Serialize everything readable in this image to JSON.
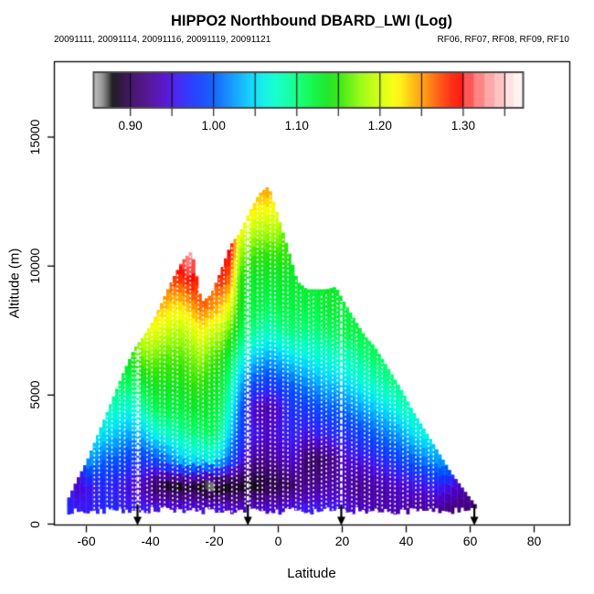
{
  "header": {
    "title": "HIPPO2 Northbound DBARD_LWI (Log)",
    "subtitle_left": "20091111, 20091114, 20091116, 20091119, 20091121",
    "subtitle_right": "RF06, RF07, RF08, RF09, RF10"
  },
  "chart_data": {
    "type": "heatmap",
    "title": "HIPPO2 Northbound DBARD_LWI (Log)",
    "xlabel": "Latitude",
    "ylabel": "Altitude (m)",
    "xlim": [
      -70,
      91
    ],
    "ylim": [
      0,
      17900
    ],
    "x_ticks": [
      -60,
      -40,
      -20,
      0,
      20,
      40,
      60,
      80
    ],
    "x_tick_labels": [
      "-60",
      "-40",
      "-20",
      "0",
      "20",
      "40",
      "60",
      "80"
    ],
    "y_ticks": [
      0,
      5000,
      10000,
      15000
    ],
    "y_tick_labels": [
      "0",
      "5000",
      "10000",
      "15000"
    ],
    "grid_lines": false,
    "colorbar": {
      "range": [
        0.857,
        1.371
      ],
      "minor_ticks": [
        0.9,
        0.95,
        1.0,
        1.05,
        1.1,
        1.15,
        1.2,
        1.25,
        1.3,
        1.35
      ],
      "labeled_ticks": [
        0.9,
        1.0,
        1.1,
        1.2,
        1.3
      ],
      "tick_labels": [
        "0.90",
        "1.00",
        "1.10",
        "1.20",
        "1.30"
      ],
      "divider_values": [
        0.9,
        0.95,
        1.0,
        1.05,
        1.1,
        1.15,
        1.2,
        1.25,
        1.3,
        1.35
      ],
      "palette": [
        [
          0.857,
          "#b4b4b4"
        ],
        [
          0.866,
          "#8c8c8c"
        ],
        [
          0.872,
          "#555555"
        ],
        [
          0.878,
          "#0a0a0a"
        ],
        [
          0.888,
          "#1e0030"
        ],
        [
          0.9,
          "#32005a"
        ],
        [
          0.92,
          "#46008c"
        ],
        [
          0.94,
          "#4a00c8"
        ],
        [
          0.955,
          "#3c14f0"
        ],
        [
          0.97,
          "#1e28ff"
        ],
        [
          0.985,
          "#0a3cff"
        ],
        [
          1.0,
          "#0055ff"
        ],
        [
          1.015,
          "#0080ff"
        ],
        [
          1.03,
          "#00a8ff"
        ],
        [
          1.045,
          "#00d2ff"
        ],
        [
          1.06,
          "#00f0e6"
        ],
        [
          1.075,
          "#00ffc8"
        ],
        [
          1.09,
          "#00ffa0"
        ],
        [
          1.105,
          "#00ff64"
        ],
        [
          1.12,
          "#00f53c"
        ],
        [
          1.135,
          "#0ae61e"
        ],
        [
          1.15,
          "#28e600"
        ],
        [
          1.165,
          "#64f000"
        ],
        [
          1.175,
          "#8cfa00"
        ],
        [
          1.195,
          "#c8ff00"
        ],
        [
          1.215,
          "#f5ff00"
        ],
        [
          1.225,
          "#ffee00"
        ],
        [
          1.24,
          "#ffb400"
        ],
        [
          1.255,
          "#ff8c00"
        ],
        [
          1.27,
          "#ff5000"
        ],
        [
          1.285,
          "#ff1e00"
        ],
        [
          1.3,
          "#ff0000"
        ],
        [
          1.3,
          "#ff4646"
        ],
        [
          1.3125,
          "#ff4646"
        ],
        [
          1.3125,
          "#ff7878"
        ],
        [
          1.325,
          "#ff7878"
        ],
        [
          1.325,
          "#ff9d9d"
        ],
        [
          1.3375,
          "#ff9d9d"
        ],
        [
          1.3375,
          "#ffbdbd"
        ],
        [
          1.35,
          "#ffbdbd"
        ],
        [
          1.35,
          "#ffe0e0"
        ],
        [
          1.3605,
          "#ffe0e0"
        ],
        [
          1.3605,
          "#fff2f2"
        ],
        [
          1.371,
          "#fff2f2"
        ]
      ]
    },
    "arrows_lat": [
      -44,
      -9.5,
      19.7,
      61.3
    ],
    "flight_tracks_lat": [
      -57.5,
      -56,
      -53.5,
      -52,
      -49.5,
      -48,
      -45.5,
      -44.6,
      -43.2,
      -41,
      -39.5,
      -37,
      -35.5,
      -33,
      -31.5,
      -29,
      -27.5,
      -25,
      -23.5,
      -21.5,
      -20,
      -18.5,
      -17,
      -14.5,
      -13,
      -10.4,
      -8.8,
      -6.5,
      -5,
      -2.5,
      -1,
      1.5,
      3,
      5.5,
      7,
      9.5,
      11,
      13.5,
      15,
      17,
      18.5,
      21,
      23,
      24.5,
      27,
      28.5,
      31,
      32.5,
      35,
      36.5,
      39,
      40.5,
      43,
      44.5,
      47,
      48.5
    ],
    "heavy_tracks_lat": [
      -43.9,
      -9.5,
      19.7
    ],
    "grid": {
      "lats": [
        -66,
        -63,
        -60,
        -57,
        -54,
        -51,
        -48,
        -45,
        -42,
        -39,
        -36,
        -33,
        -30,
        -27,
        -24,
        -21,
        -18,
        -15,
        -12,
        -9,
        -6,
        -3,
        0,
        3,
        6,
        9,
        12,
        15,
        18,
        21,
        24,
        27,
        30,
        33,
        36,
        39,
        42,
        45,
        48,
        51,
        54,
        57,
        60,
        62
      ],
      "top_alt": [
        900,
        1700,
        2400,
        3300,
        4200,
        5100,
        6000,
        6800,
        7300,
        7900,
        8700,
        9500,
        10200,
        10600,
        8600,
        8900,
        9800,
        10800,
        11300,
        12100,
        12800,
        13100,
        11900,
        10700,
        9400,
        9100,
        9100,
        9100,
        9200,
        8500,
        7900,
        7300,
        6900,
        6300,
        5700,
        5100,
        4400,
        3800,
        3200,
        2600,
        2000,
        1500,
        1000,
        700
      ],
      "alts": [
        500,
        1500,
        2500,
        3500,
        4500,
        5500,
        6500,
        7500,
        8500,
        9500,
        10500,
        11500,
        12500,
        13500
      ],
      "values": [
        [
          0.97
        ],
        [
          0.96,
          0.94
        ],
        [
          0.96,
          0.95,
          1.03
        ],
        [
          0.96,
          0.96,
          1.02,
          1.06
        ],
        [
          0.97,
          0.97,
          1.0,
          1.05,
          1.08
        ],
        [
          0.97,
          0.96,
          1.0,
          1.04,
          1.08,
          1.11
        ],
        [
          0.96,
          0.95,
          0.99,
          1.03,
          1.07,
          1.11,
          1.14
        ],
        [
          0.96,
          0.94,
          0.98,
          1.03,
          1.07,
          1.11,
          1.15,
          1.19
        ],
        [
          0.96,
          0.93,
          0.98,
          1.04,
          1.09,
          1.13,
          1.17,
          1.21
        ],
        [
          0.96,
          0.9,
          0.99,
          1.06,
          1.11,
          1.14,
          1.17,
          1.21,
          1.25
        ],
        [
          0.96,
          0.89,
          1.0,
          1.07,
          1.12,
          1.14,
          1.16,
          1.2,
          1.24,
          1.28
        ],
        [
          0.96,
          0.88,
          1.02,
          1.08,
          1.12,
          1.14,
          1.16,
          1.19,
          1.23,
          1.28,
          1.31
        ],
        [
          0.96,
          0.88,
          1.04,
          1.09,
          1.12,
          1.14,
          1.16,
          1.19,
          1.23,
          1.28,
          1.32
        ],
        [
          0.96,
          0.89,
          1.05,
          1.1,
          1.13,
          1.15,
          1.17,
          1.2,
          1.25,
          1.3,
          1.33
        ],
        [
          0.96,
          0.87,
          1.05,
          1.1,
          1.13,
          1.15,
          1.18,
          1.22,
          1.27
        ],
        [
          0.96,
          0.865,
          1.06,
          1.11,
          1.13,
          1.14,
          1.16,
          1.2,
          1.26
        ],
        [
          0.96,
          0.87,
          1.04,
          1.09,
          1.11,
          1.13,
          1.15,
          1.19,
          1.24,
          1.29
        ],
        [
          0.95,
          0.875,
          1.0,
          1.04,
          1.07,
          1.09,
          1.12,
          1.16,
          1.21,
          1.26,
          1.3
        ],
        [
          0.95,
          0.88,
          0.96,
          0.99,
          1.01,
          1.04,
          1.08,
          1.12,
          1.14,
          1.15,
          1.18,
          1.22
        ],
        [
          0.95,
          0.88,
          0.93,
          0.96,
          0.95,
          1.0,
          1.05,
          1.1,
          1.12,
          1.13,
          1.16,
          1.2,
          1.24
        ],
        [
          0.95,
          0.88,
          0.92,
          0.95,
          0.93,
          0.99,
          1.04,
          1.09,
          1.12,
          1.13,
          1.15,
          1.19,
          1.23,
          1.26
        ],
        [
          0.95,
          0.89,
          0.92,
          0.94,
          0.93,
          0.98,
          1.03,
          1.08,
          1.11,
          1.13,
          1.15,
          1.19,
          1.23,
          1.27
        ],
        [
          0.95,
          0.89,
          0.93,
          0.95,
          0.94,
          0.99,
          1.04,
          1.09,
          1.12,
          1.13,
          1.15,
          1.19,
          1.22
        ],
        [
          0.96,
          0.9,
          0.94,
          0.96,
          0.97,
          1.0,
          1.05,
          1.1,
          1.12,
          1.13,
          1.15
        ],
        [
          0.96,
          0.91,
          0.94,
          0.96,
          0.98,
          1.01,
          1.06,
          1.1,
          1.12,
          1.13
        ],
        [
          0.96,
          0.92,
          0.9,
          0.95,
          0.98,
          1.02,
          1.06,
          1.1,
          1.12,
          1.13
        ],
        [
          0.96,
          0.92,
          0.9,
          0.96,
          0.99,
          1.03,
          1.07,
          1.1,
          1.12,
          1.13
        ],
        [
          0.96,
          0.93,
          0.91,
          0.96,
          1.0,
          1.04,
          1.07,
          1.11,
          1.13,
          1.13
        ],
        [
          0.96,
          0.93,
          0.92,
          0.97,
          1.0,
          1.04,
          1.08,
          1.11,
          1.13,
          1.13
        ],
        [
          0.95,
          0.93,
          0.94,
          0.97,
          1.01,
          1.05,
          1.08,
          1.12,
          1.12
        ],
        [
          0.94,
          0.92,
          0.95,
          0.98,
          1.02,
          1.06,
          1.09,
          1.12
        ],
        [
          0.94,
          0.92,
          0.95,
          0.99,
          1.03,
          1.07,
          1.1,
          1.12
        ],
        [
          0.93,
          0.93,
          0.96,
          1.0,
          1.04,
          1.08,
          1.11
        ],
        [
          0.93,
          0.93,
          0.97,
          1.01,
          1.05,
          1.09,
          1.11
        ],
        [
          0.93,
          0.94,
          0.98,
          1.02,
          1.06,
          1.1
        ],
        [
          0.93,
          0.94,
          0.99,
          1.03,
          1.08,
          1.1
        ],
        [
          0.92,
          0.95,
          1.0,
          1.05,
          1.08
        ],
        [
          0.92,
          0.95,
          1.01,
          1.06
        ],
        [
          0.92,
          0.96,
          1.02,
          1.07
        ],
        [
          0.92,
          0.96,
          1.03
        ],
        [
          0.91,
          0.95,
          1.04
        ],
        [
          0.91,
          0.94
        ],
        [
          0.91,
          0.93
        ],
        [
          0.91
        ]
      ]
    }
  },
  "colors": {
    "background": "#ffffff",
    "frame": "#000000",
    "arrow": "#000000",
    "track": "#ffffff",
    "colorbar_border": "#4a4a4a"
  }
}
